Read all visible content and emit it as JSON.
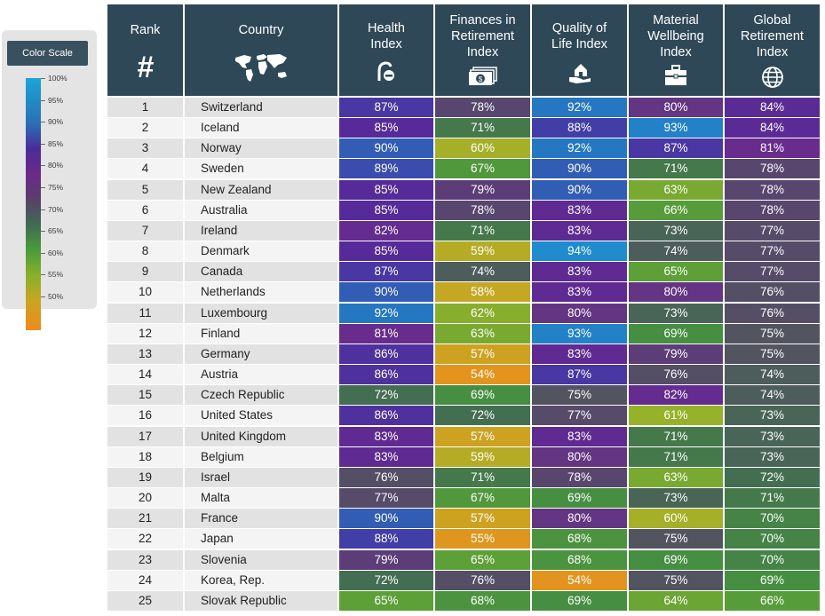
{
  "legend": {
    "title": "Color Scale",
    "ticks": [
      "100%",
      "95%",
      "90%",
      "85%",
      "80%",
      "75%",
      "70%",
      "65%",
      "60%",
      "55%",
      "50%"
    ]
  },
  "header": {
    "rank": "Rank",
    "rank_symbol": "#",
    "country": "Country",
    "health": "Health\nIndex",
    "finances": "Finances in\nRetirement\nIndex",
    "quality": "Quality of\nLife Index",
    "material": "Material\nWellbeing\nIndex",
    "global": "Global\nRetirement\nIndex"
  },
  "icons": [
    "hash-icon",
    "world-map-icon",
    "health-icon",
    "money-icon",
    "house-in-hand-icon",
    "briefcase-icon",
    "globe-icon"
  ],
  "colors": {
    "header_bg": "#2f4857",
    "row_even": "#e2e2e2",
    "row_odd": "#f4f4f4",
    "scale_100": "#19a6d6",
    "scale_50": "#f08a1c"
  },
  "chart_data": {
    "type": "table",
    "columns": [
      "Rank",
      "Country",
      "Health Index",
      "Finances in Retirement Index",
      "Quality of Life Index",
      "Material Wellbeing Index",
      "Global Retirement Index"
    ],
    "rows": [
      [
        "1",
        "Switzerland",
        "87%",
        "78%",
        "92%",
        "80%",
        "84%"
      ],
      [
        "2",
        "Iceland",
        "85%",
        "71%",
        "88%",
        "93%",
        "84%"
      ],
      [
        "3",
        "Norway",
        "90%",
        "60%",
        "92%",
        "87%",
        "81%"
      ],
      [
        "4",
        "Sweden",
        "89%",
        "67%",
        "90%",
        "71%",
        "78%"
      ],
      [
        "5",
        "New Zealand",
        "85%",
        "79%",
        "90%",
        "63%",
        "78%"
      ],
      [
        "6",
        "Australia",
        "85%",
        "78%",
        "83%",
        "66%",
        "78%"
      ],
      [
        "7",
        "Ireland",
        "82%",
        "71%",
        "83%",
        "73%",
        "77%"
      ],
      [
        "8",
        "Denmark",
        "85%",
        "59%",
        "94%",
        "74%",
        "77%"
      ],
      [
        "9",
        "Canada",
        "87%",
        "74%",
        "83%",
        "65%",
        "77%"
      ],
      [
        "10",
        "Netherlands",
        "90%",
        "58%",
        "83%",
        "80%",
        "76%"
      ],
      [
        "11",
        "Luxembourg",
        "92%",
        "62%",
        "80%",
        "73%",
        "76%"
      ],
      [
        "12",
        "Finland",
        "81%",
        "63%",
        "93%",
        "69%",
        "75%"
      ],
      [
        "13",
        "Germany",
        "86%",
        "57%",
        "83%",
        "79%",
        "75%"
      ],
      [
        "14",
        "Austria",
        "86%",
        "54%",
        "87%",
        "76%",
        "74%"
      ],
      [
        "15",
        "Czech Republic",
        "72%",
        "69%",
        "75%",
        "82%",
        "74%"
      ],
      [
        "16",
        "United States",
        "86%",
        "72%",
        "77%",
        "61%",
        "73%"
      ],
      [
        "17",
        "United Kingdom",
        "83%",
        "57%",
        "83%",
        "71%",
        "73%"
      ],
      [
        "18",
        "Belgium",
        "83%",
        "59%",
        "80%",
        "71%",
        "73%"
      ],
      [
        "19",
        "Israel",
        "76%",
        "71%",
        "78%",
        "63%",
        "72%"
      ],
      [
        "20",
        "Malta",
        "77%",
        "67%",
        "69%",
        "73%",
        "71%"
      ],
      [
        "21",
        "France",
        "90%",
        "57%",
        "80%",
        "60%",
        "70%"
      ],
      [
        "22",
        "Japan",
        "88%",
        "55%",
        "68%",
        "75%",
        "70%"
      ],
      [
        "23",
        "Slovenia",
        "79%",
        "65%",
        "68%",
        "69%",
        "70%"
      ],
      [
        "24",
        "Korea, Rep.",
        "72%",
        "76%",
        "54%",
        "75%",
        "69%"
      ],
      [
        "25",
        "Slovak Republic",
        "65%",
        "68%",
        "69%",
        "64%",
        "66%"
      ]
    ]
  }
}
